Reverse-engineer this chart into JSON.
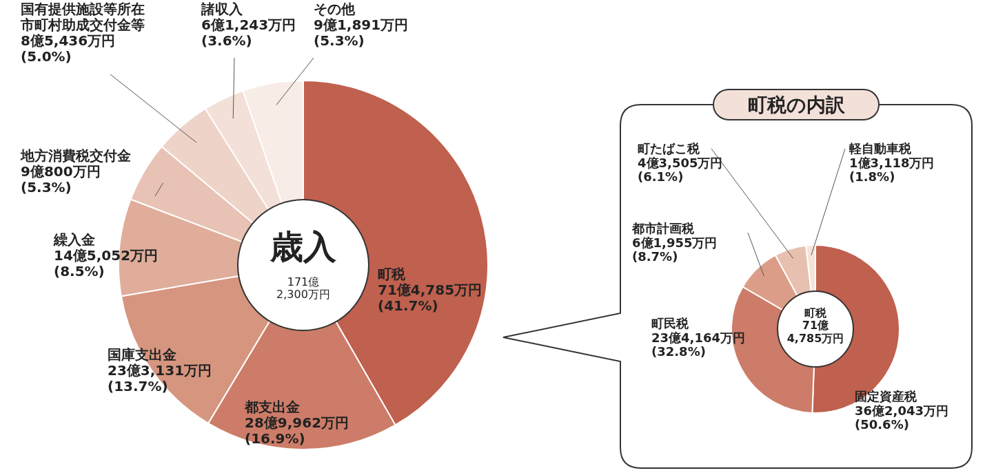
{
  "chart_data": [
    {
      "type": "donut",
      "categories": [
        "町税",
        "都支出金",
        "国庫支出金",
        "繰入金",
        "地方消費税交付金",
        "国有提供施設等所在市町村助成交付金等",
        "諸収入",
        "その他"
      ],
      "values": [
        41.7,
        16.9,
        13.7,
        8.5,
        5.3,
        5.0,
        3.6,
        5.3
      ],
      "value_labels": [
        "71億4,785万円\n(41.7%)",
        "28億9,962万円\n(16.9%)",
        "23億3,131万円\n(13.7%)",
        "14億5,052万円\n(8.5%)",
        "9億800万円\n(5.3%)",
        "8億5,436万円\n(5.0%)",
        "6億1,243万円\n(3.6%)",
        "9億1,891万円\n(5.3%)"
      ],
      "colors": [
        "#c0604e",
        "#cc7c68",
        "#d6957f",
        "#e0ad9b",
        "#e8c2b4",
        "#eed3c8",
        "#f3e0d8",
        "#f8ece6"
      ],
      "annotations": [
        "歳入",
        "171億\n2,300万円"
      ]
    },
    {
      "type": "donut",
      "title": "町税の内訳",
      "categories": [
        "固定資産税",
        "町民税",
        "都市計画税",
        "町たばこ税",
        "軽自動車税"
      ],
      "values": [
        50.6,
        32.8,
        8.7,
        6.1,
        1.8
      ],
      "value_labels": [
        "36億2,043万円\n(50.6%)",
        "23億4,164万円\n(32.8%)",
        "6億1,955万円\n(8.7%)",
        "4億3,505万円\n(6.1%)",
        "1億3,118万円\n(1.8%)"
      ],
      "colors": [
        "#c0604e",
        "#cc7c68",
        "#dc9d88",
        "#e8c0b0",
        "#f5e2d8"
      ],
      "annotations": [
        "町税\n71億\n4,785万円"
      ]
    }
  ]
}
